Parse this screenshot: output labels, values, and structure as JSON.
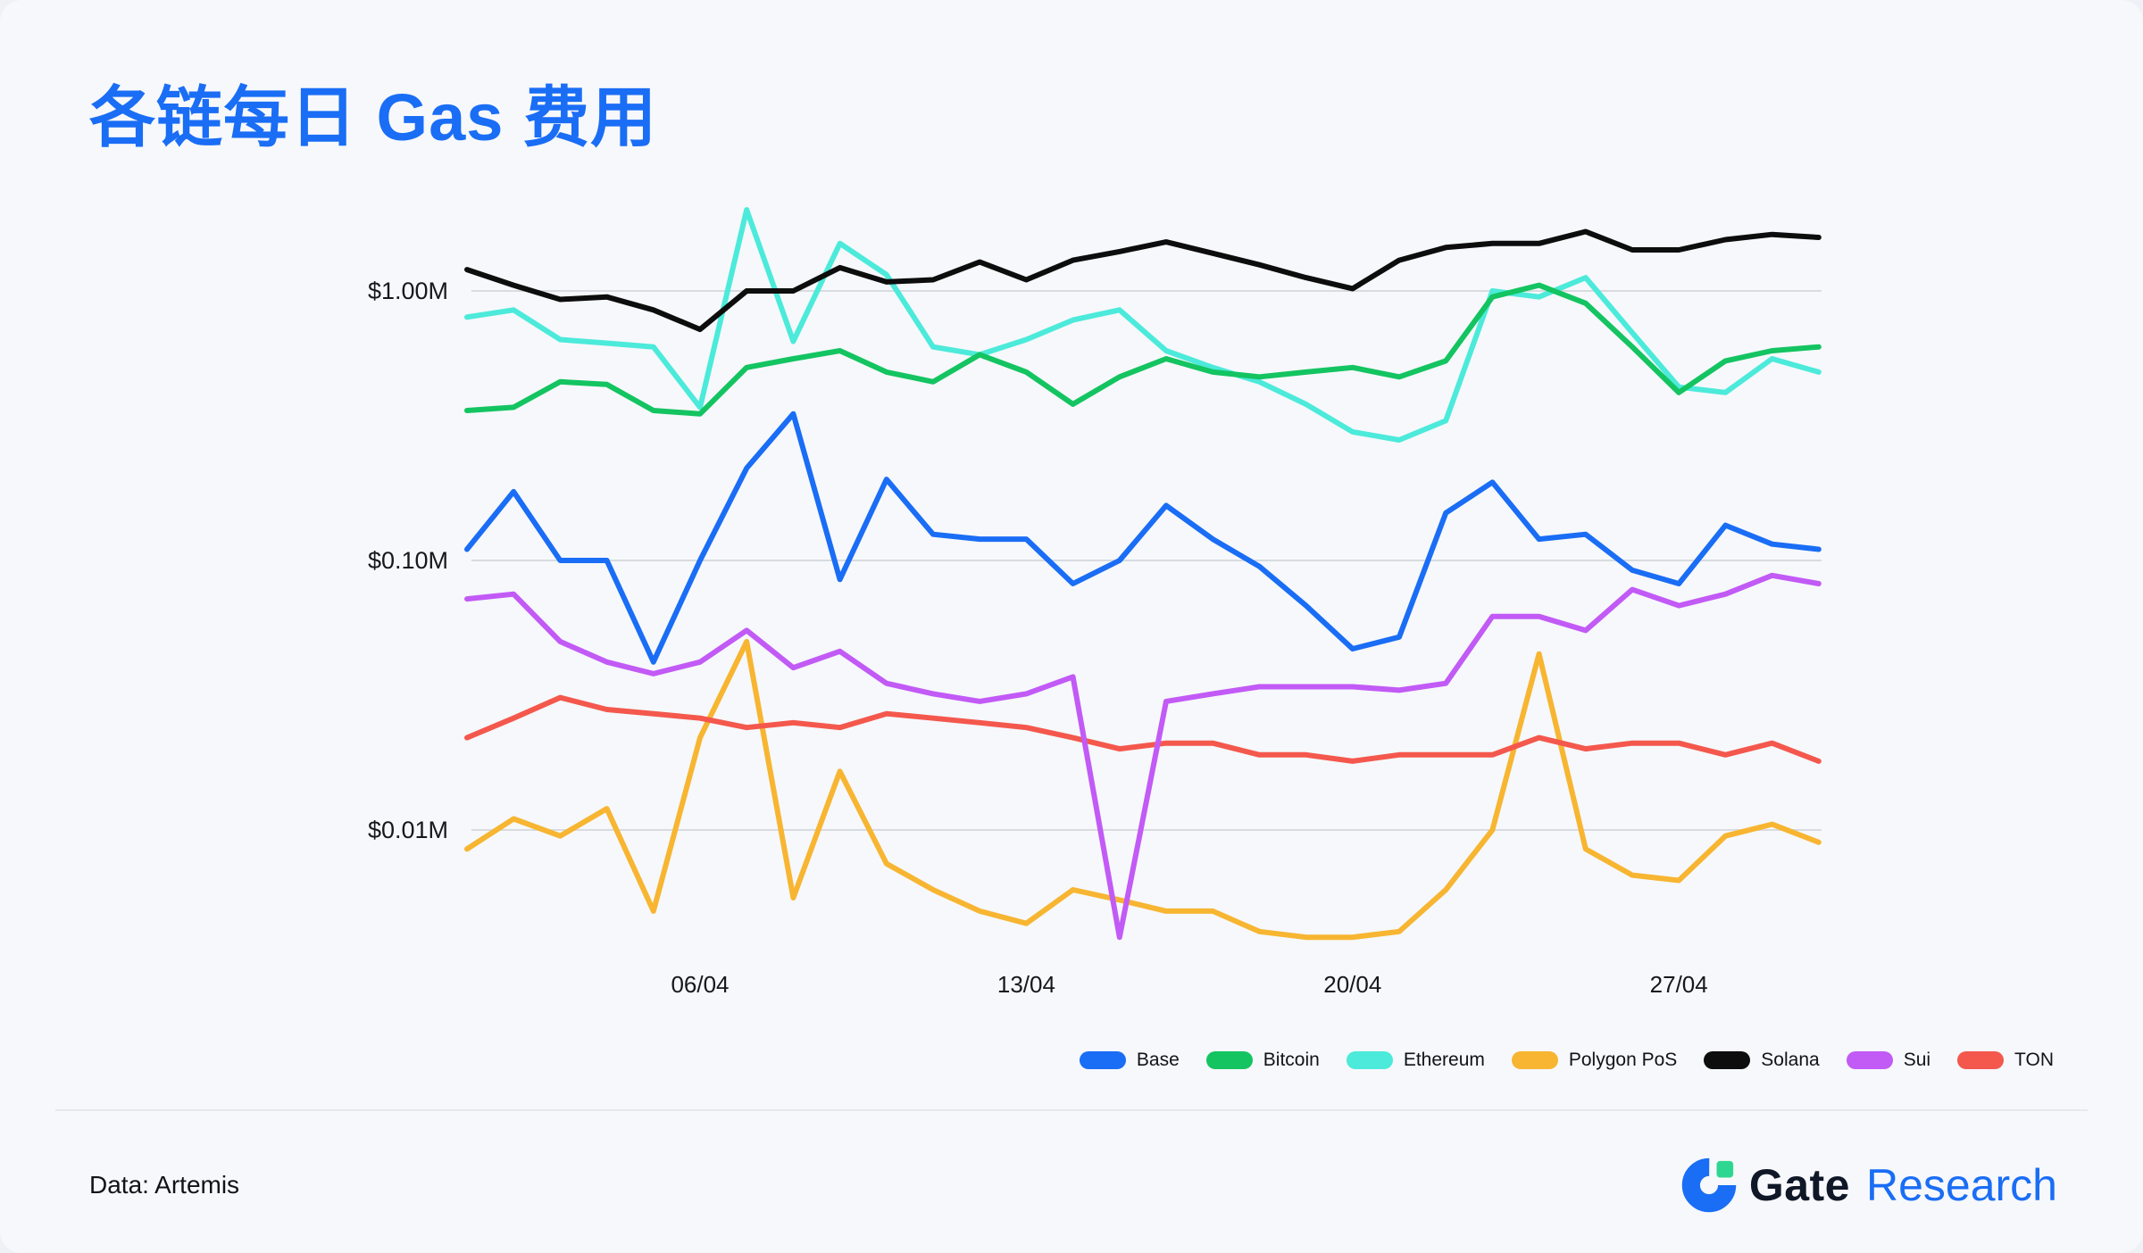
{
  "title": "各链每日 Gas 费用",
  "footer": {
    "source": "Data: Artemis",
    "brand": {
      "name": "Gate",
      "suffix": "Research"
    }
  },
  "colors": {
    "title": "#1a6df5",
    "background": "#f6f8fb",
    "grid": "#d8dbdf",
    "axis_text": "#15181d",
    "brand_dark": "#101828",
    "brand_blue": "#1a6df5",
    "logo_green": "#2ed791"
  },
  "chart_data": {
    "type": "line",
    "y_scale": "log",
    "unit": "$M",
    "ylim": [
      0.003,
      2.2
    ],
    "grid": "horizontal-only",
    "legend_position": "bottom-right",
    "x": [
      "01/04",
      "02/04",
      "03/04",
      "04/04",
      "05/04",
      "06/04",
      "07/04",
      "08/04",
      "09/04",
      "10/04",
      "11/04",
      "12/04",
      "13/04",
      "14/04",
      "15/04",
      "16/04",
      "17/04",
      "18/04",
      "19/04",
      "20/04",
      "21/04",
      "22/04",
      "23/04",
      "24/04",
      "25/04",
      "26/04",
      "27/04",
      "28/04",
      "29/04",
      "30/04"
    ],
    "x_ticks": [
      {
        "label": "06/04",
        "index": 5
      },
      {
        "label": "13/04",
        "index": 12
      },
      {
        "label": "20/04",
        "index": 19
      },
      {
        "label": "27/04",
        "index": 26
      }
    ],
    "y_ticks": [
      {
        "label": "$1.00M",
        "value": 1.0
      },
      {
        "label": "$0.10M",
        "value": 0.1
      },
      {
        "label": "$0.01M",
        "value": 0.01
      }
    ],
    "series": [
      {
        "name": "Base",
        "color": "#1a6df5",
        "values": [
          0.11,
          0.18,
          0.1,
          0.1,
          0.042,
          0.1,
          0.22,
          0.35,
          0.085,
          0.2,
          0.125,
          0.12,
          0.12,
          0.082,
          0.1,
          0.16,
          0.12,
          0.095,
          0.068,
          0.047,
          0.052,
          0.15,
          0.195,
          0.12,
          0.125,
          0.092,
          0.082,
          0.135,
          0.115,
          0.11
        ]
      },
      {
        "name": "Bitcoin",
        "color": "#13c461",
        "values": [
          0.36,
          0.37,
          0.46,
          0.45,
          0.36,
          0.35,
          0.52,
          0.56,
          0.6,
          0.5,
          0.46,
          0.58,
          0.5,
          0.38,
          0.48,
          0.56,
          0.5,
          0.48,
          0.5,
          0.52,
          0.48,
          0.55,
          0.95,
          1.05,
          0.9,
          0.62,
          0.42,
          0.55,
          0.6,
          0.62
        ]
      },
      {
        "name": "Ethereum",
        "color": "#4ceada",
        "values": [
          0.8,
          0.85,
          0.66,
          0.64,
          0.62,
          0.37,
          2.0,
          0.65,
          1.5,
          1.15,
          0.62,
          0.58,
          0.66,
          0.78,
          0.85,
          0.6,
          0.52,
          0.46,
          0.38,
          0.3,
          0.28,
          0.33,
          1.0,
          0.95,
          1.12,
          0.7,
          0.44,
          0.42,
          0.56,
          0.5
        ]
      },
      {
        "name": "Polygon PoS",
        "color": "#f7b531",
        "values": [
          0.0085,
          0.011,
          0.0095,
          0.012,
          0.005,
          0.022,
          0.05,
          0.0056,
          0.0165,
          0.0075,
          0.006,
          0.005,
          0.0045,
          0.006,
          0.0055,
          0.005,
          0.005,
          0.0042,
          0.004,
          0.004,
          0.0042,
          0.006,
          0.01,
          0.045,
          0.0085,
          0.0068,
          0.0065,
          0.0095,
          0.0105,
          0.009
        ]
      },
      {
        "name": "Solana",
        "color": "#0d0d0d",
        "values": [
          1.2,
          1.05,
          0.93,
          0.95,
          0.85,
          0.72,
          1.0,
          1.0,
          1.22,
          1.08,
          1.1,
          1.28,
          1.1,
          1.3,
          1.4,
          1.52,
          1.38,
          1.25,
          1.12,
          1.02,
          1.3,
          1.45,
          1.5,
          1.5,
          1.66,
          1.42,
          1.42,
          1.55,
          1.62,
          1.58
        ]
      },
      {
        "name": "Sui",
        "color": "#c25af6",
        "values": [
          0.072,
          0.075,
          0.05,
          0.042,
          0.038,
          0.042,
          0.055,
          0.04,
          0.046,
          0.035,
          0.032,
          0.03,
          0.032,
          0.037,
          0.004,
          0.03,
          0.032,
          0.034,
          0.034,
          0.034,
          0.033,
          0.035,
          0.062,
          0.062,
          0.055,
          0.078,
          0.068,
          0.075,
          0.088,
          0.082
        ]
      },
      {
        "name": "TON",
        "color": "#f4584d",
        "values": [
          0.022,
          0.026,
          0.031,
          0.028,
          0.027,
          0.026,
          0.024,
          0.025,
          0.024,
          0.027,
          0.026,
          0.025,
          0.024,
          0.022,
          0.02,
          0.021,
          0.021,
          0.019,
          0.019,
          0.018,
          0.019,
          0.019,
          0.019,
          0.022,
          0.02,
          0.021,
          0.021,
          0.019,
          0.021,
          0.018
        ]
      }
    ],
    "legend_order": [
      "Base",
      "Bitcoin",
      "Ethereum",
      "Polygon PoS",
      "Solana",
      "Sui",
      "TON"
    ],
    "draw_order": [
      "Polygon PoS",
      "TON",
      "Sui",
      "Base",
      "Ethereum",
      "Bitcoin",
      "Solana"
    ]
  }
}
